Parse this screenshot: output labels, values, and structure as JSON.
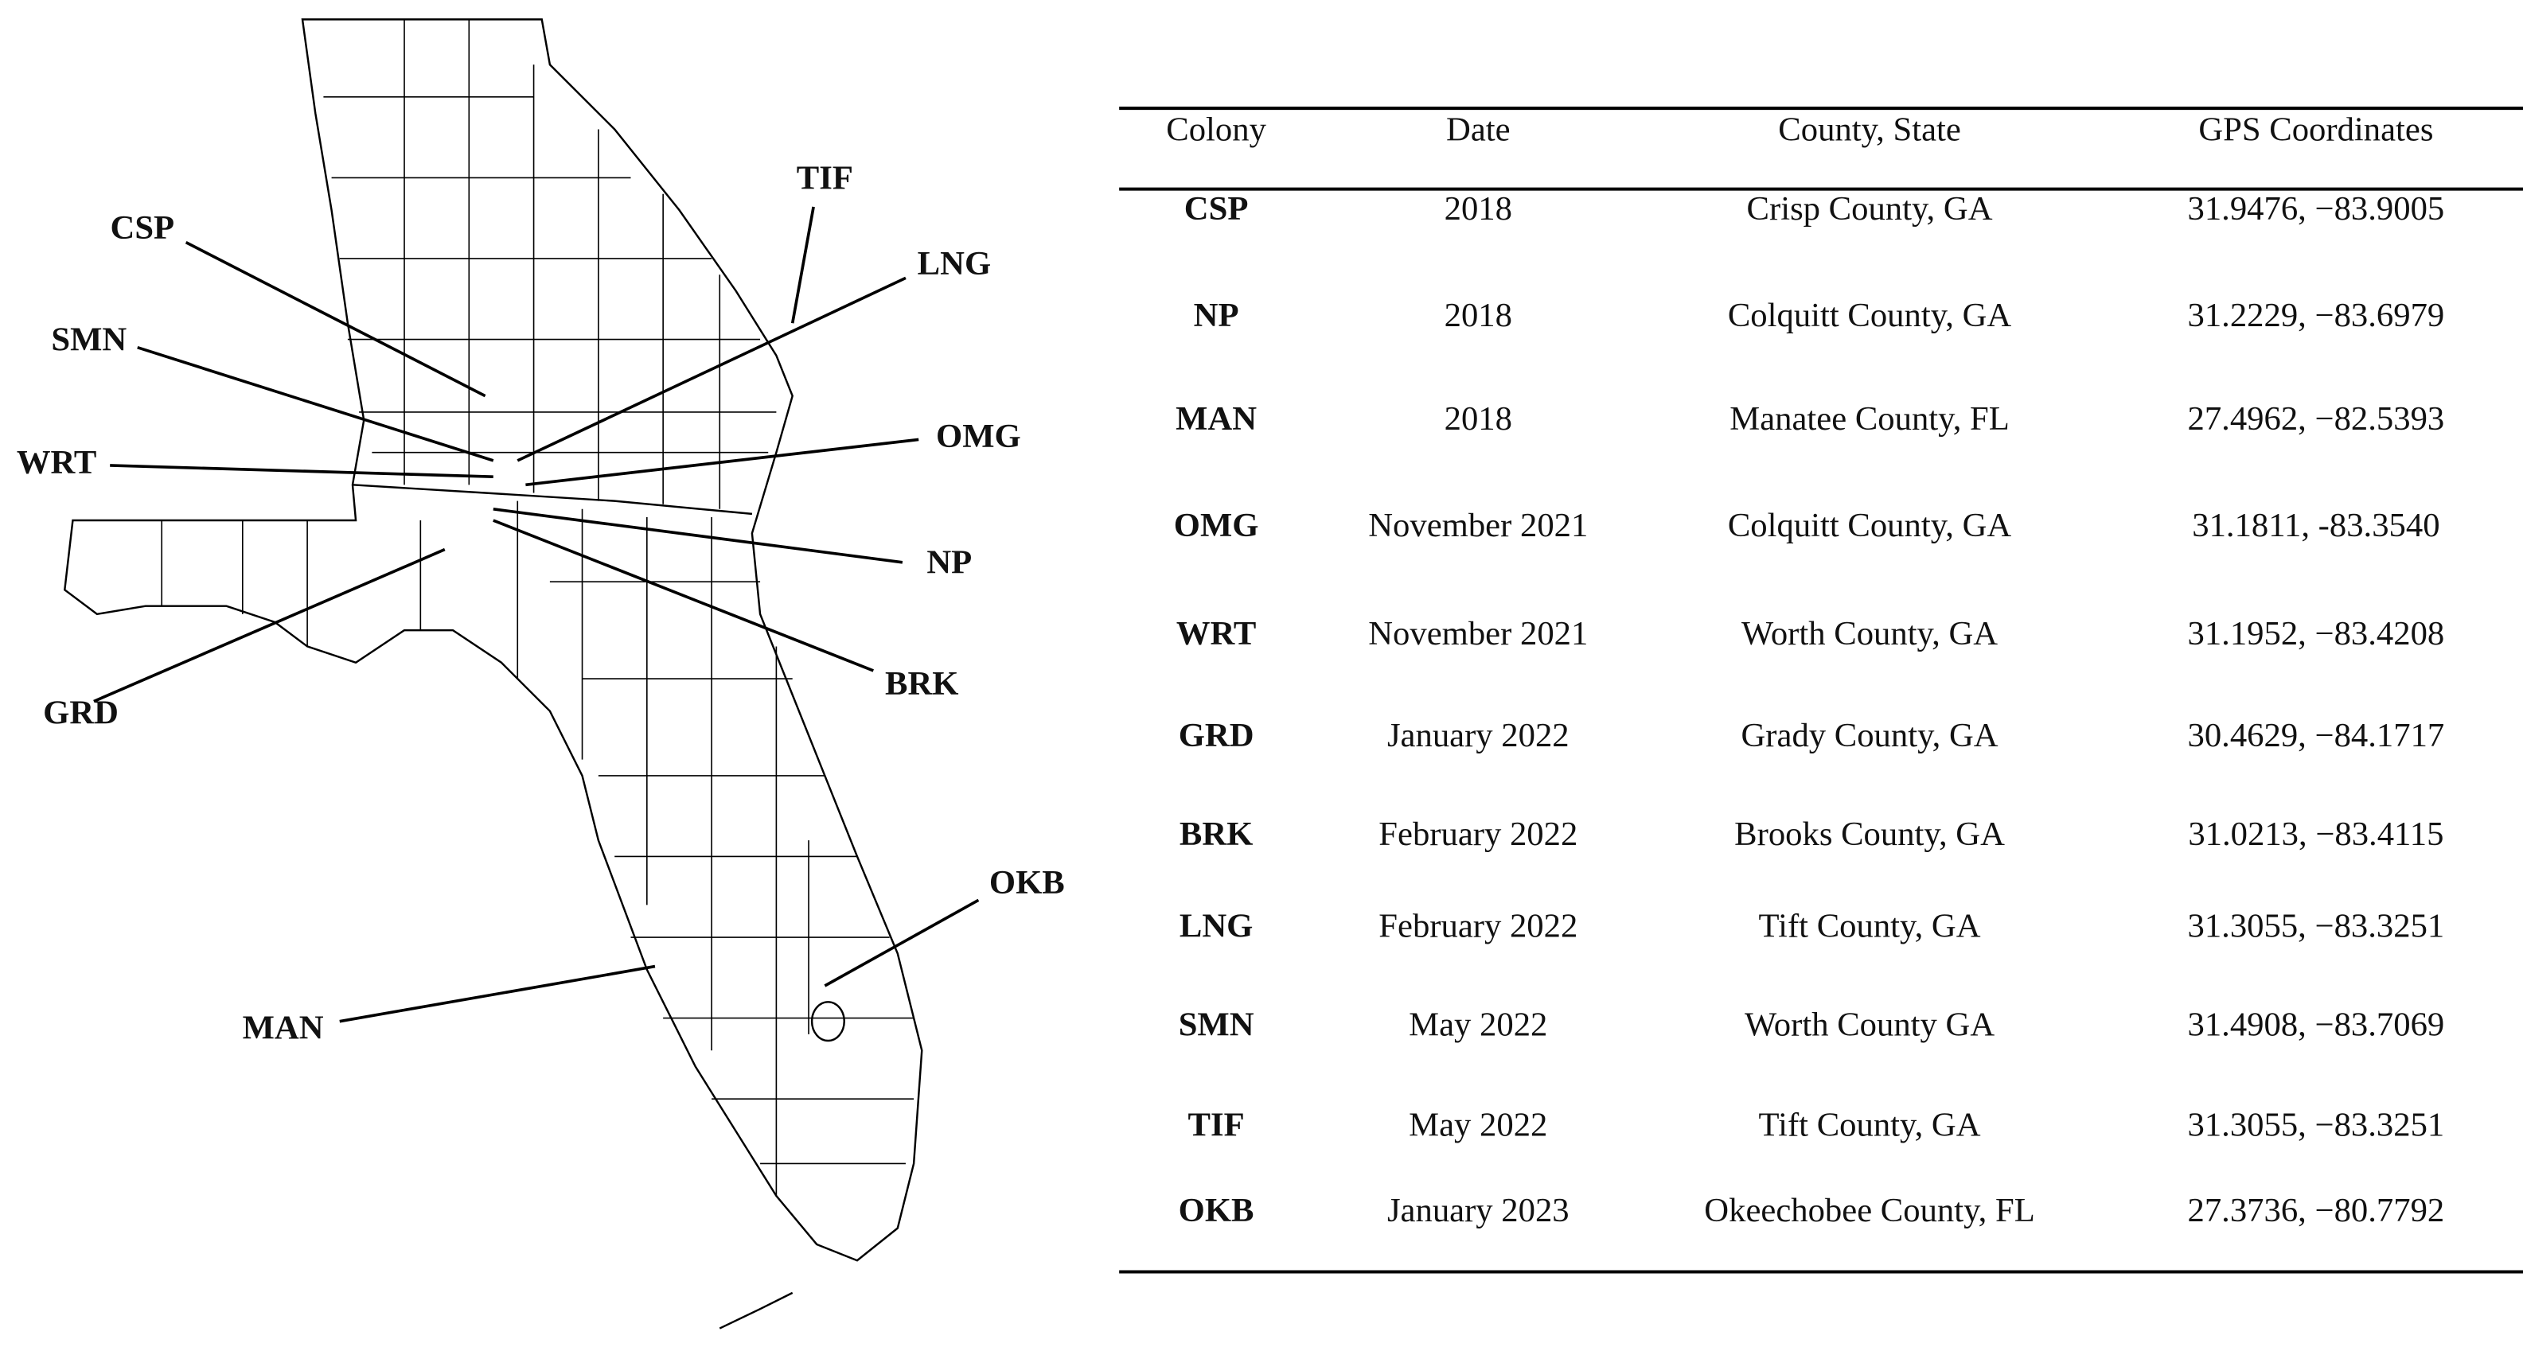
{
  "map": {
    "labels": [
      "TIF",
      "CSP",
      "LNG",
      "SMN",
      "OMG",
      "WRT",
      "NP",
      "GRD",
      "BRK",
      "OKB",
      "MAN"
    ]
  },
  "table": {
    "headers": [
      "Colony",
      "Date",
      "County, State",
      "GPS Coordinates"
    ],
    "rows": [
      [
        "CSP",
        "2018",
        "Crisp County, GA",
        "31.9476, −83.9005"
      ],
      [
        "NP",
        "2018",
        "Colquitt County, GA",
        "31.2229, −83.6979"
      ],
      [
        "MAN",
        "2018",
        "Manatee County, FL",
        "27.4962, −82.5393"
      ],
      [
        "OMG",
        "November 2021",
        "Colquitt County, GA",
        "31.1811, -83.3540"
      ],
      [
        "WRT",
        "November 2021",
        "Worth County, GA",
        "31.1952, −83.4208"
      ],
      [
        "GRD",
        "January 2022",
        "Grady County, GA",
        "30.4629, −84.1717"
      ],
      [
        "BRK",
        "February 2022",
        "Brooks County, GA",
        "31.0213, −83.4115"
      ],
      [
        "LNG",
        "February 2022",
        "Tift County, GA",
        "31.3055, −83.3251"
      ],
      [
        "SMN",
        "May 2022",
        "Worth County GA",
        "31.4908, −83.7069"
      ],
      [
        "TIF",
        "May 2022",
        "Tift County, GA",
        "31.3055, −83.3251"
      ],
      [
        "OKB",
        "January 2023",
        "Okeechobee County, FL",
        "27.3736, −80.7792"
      ]
    ]
  }
}
